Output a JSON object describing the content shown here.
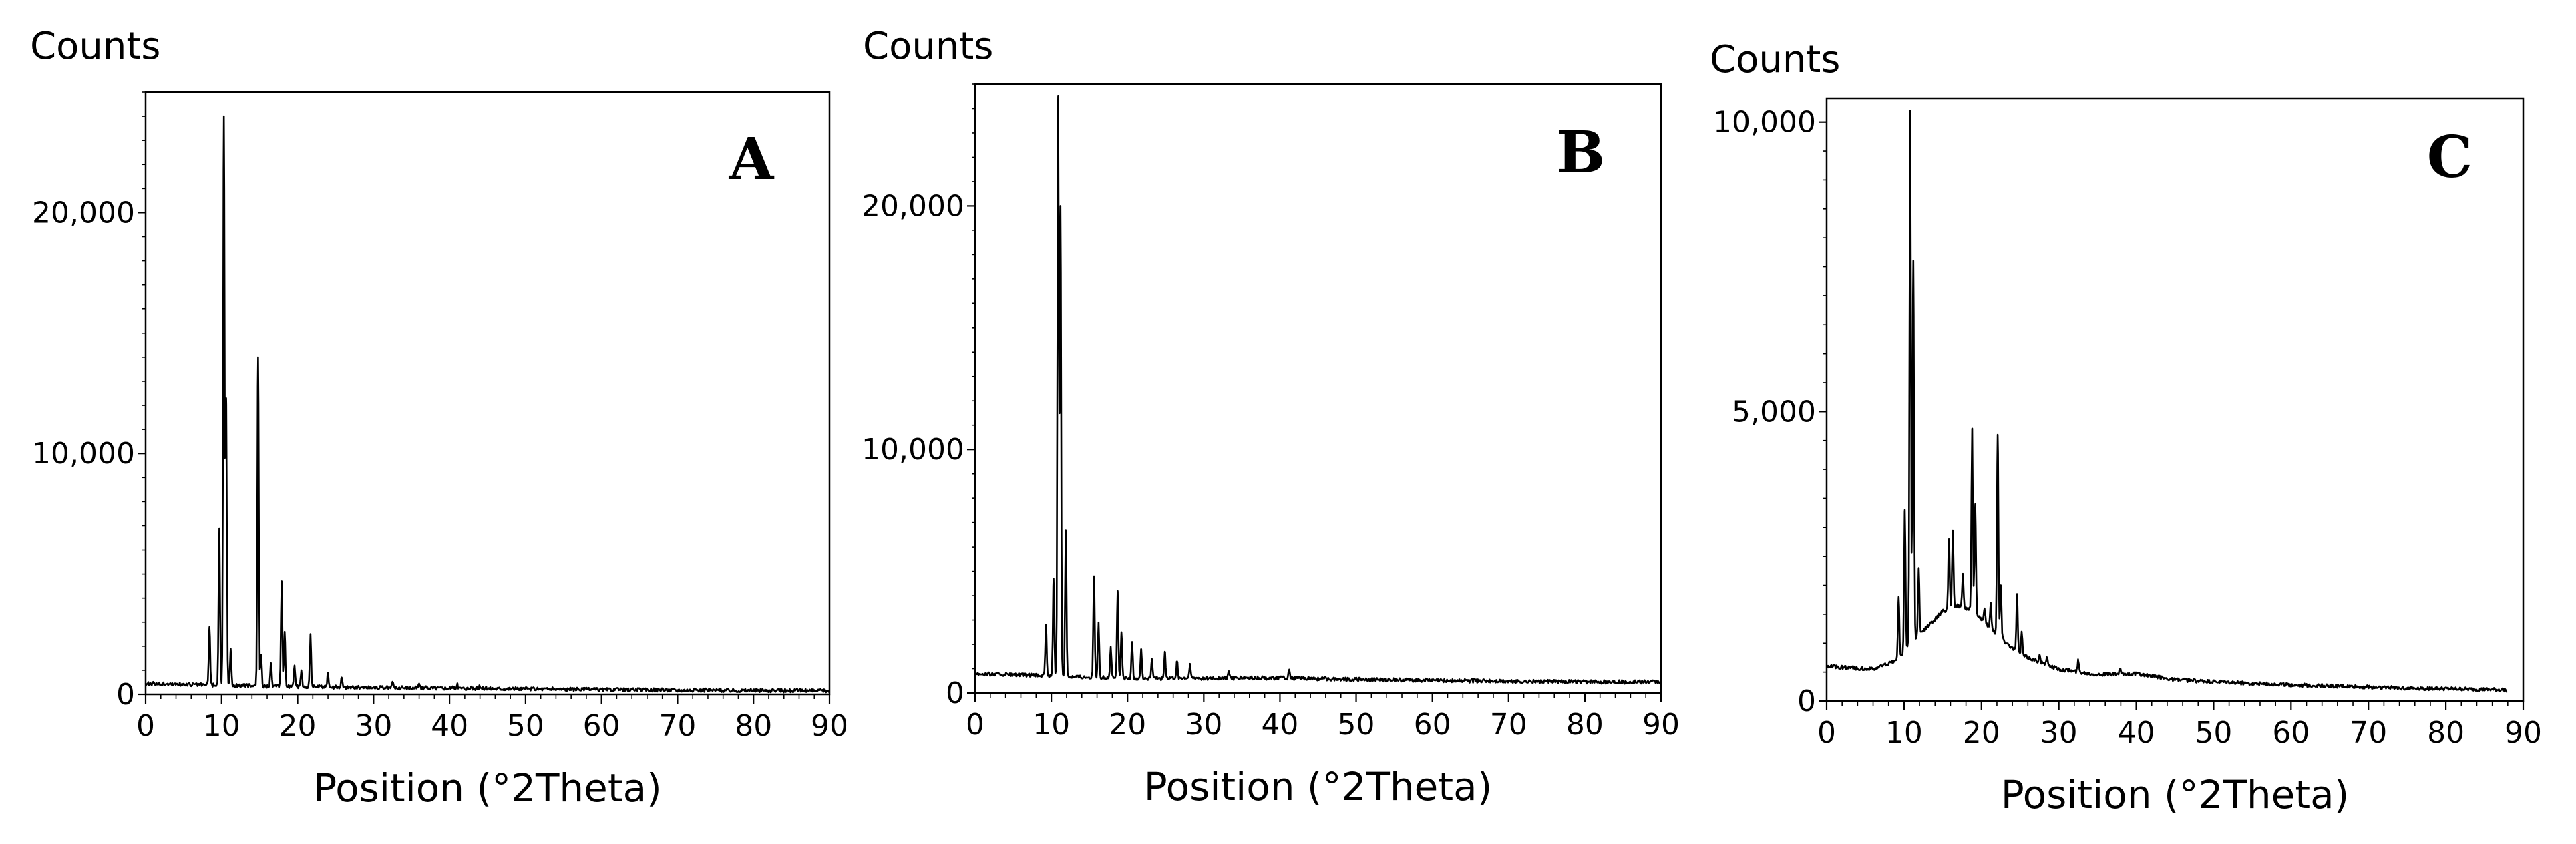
{
  "chart_data": [
    {
      "type": "line",
      "panel_label": "A",
      "xlabel": "Position (°2Theta)",
      "ylabel": "Counts",
      "xlim": [
        0,
        90
      ],
      "ylim": [
        0,
        25000
      ],
      "xticks": [
        0,
        10,
        20,
        30,
        40,
        50,
        60,
        70,
        80,
        90
      ],
      "yticks": [
        0,
        10000,
        20000
      ],
      "ytick_labels": [
        "0",
        "10,000",
        "20,000"
      ],
      "baseline": [
        [
          0,
          450
        ],
        [
          10,
          380
        ],
        [
          20,
          320
        ],
        [
          30,
          280
        ],
        [
          40,
          260
        ],
        [
          50,
          230
        ],
        [
          60,
          200
        ],
        [
          70,
          180
        ],
        [
          80,
          160
        ],
        [
          90,
          150
        ]
      ],
      "peaks": [
        [
          8.4,
          2800
        ],
        [
          9.7,
          6900
        ],
        [
          10.3,
          24000
        ],
        [
          10.6,
          12300
        ],
        [
          11.2,
          1900
        ],
        [
          14.8,
          14000
        ],
        [
          15.2,
          1600
        ],
        [
          16.5,
          1300
        ],
        [
          17.9,
          4700
        ],
        [
          18.3,
          2600
        ],
        [
          19.6,
          1200
        ],
        [
          20.5,
          1000
        ],
        [
          21.7,
          2500
        ],
        [
          24.0,
          900
        ],
        [
          25.8,
          700
        ],
        [
          32.5,
          500
        ],
        [
          36,
          450
        ],
        [
          41,
          400
        ],
        [
          44,
          330
        ]
      ]
    },
    {
      "type": "line",
      "panel_label": "B",
      "xlabel": "Position (°2Theta)",
      "ylabel": "Counts",
      "xlim": [
        0,
        90
      ],
      "ylim": [
        0,
        25000
      ],
      "xticks": [
        0,
        10,
        20,
        30,
        40,
        50,
        60,
        70,
        80,
        90
      ],
      "yticks": [
        0,
        10000,
        20000
      ],
      "ytick_labels": [
        "0",
        "10,000",
        "20,000"
      ],
      "baseline": [
        [
          0,
          800
        ],
        [
          10,
          700
        ],
        [
          20,
          600
        ],
        [
          30,
          600
        ],
        [
          40,
          620
        ],
        [
          50,
          560
        ],
        [
          60,
          520
        ],
        [
          70,
          480
        ],
        [
          80,
          460
        ],
        [
          90,
          450
        ]
      ],
      "peaks": [
        [
          9.3,
          2800
        ],
        [
          10.3,
          4700
        ],
        [
          10.9,
          24500
        ],
        [
          11.2,
          20000
        ],
        [
          11.9,
          6700
        ],
        [
          15.6,
          4800
        ],
        [
          16.2,
          2900
        ],
        [
          17.8,
          1900
        ],
        [
          18.7,
          4200
        ],
        [
          19.2,
          2500
        ],
        [
          20.6,
          2100
        ],
        [
          21.8,
          1800
        ],
        [
          23.2,
          1400
        ],
        [
          24.9,
          1700
        ],
        [
          26.5,
          1300
        ],
        [
          28.2,
          1200
        ],
        [
          33.3,
          900
        ],
        [
          41.2,
          900
        ]
      ]
    },
    {
      "type": "line",
      "panel_label": "C",
      "xlabel": "Position (°2Theta)",
      "ylabel": "Counts",
      "xlim": [
        0,
        90
      ],
      "ylim": [
        0,
        10400
      ],
      "xticks": [
        0,
        10,
        20,
        30,
        40,
        50,
        60,
        70,
        80,
        90
      ],
      "yticks": [
        0,
        5000,
        10000
      ],
      "ytick_labels": [
        "0",
        "5,000",
        "10,000"
      ],
      "baseline": [
        [
          0,
          600
        ],
        [
          6,
          550
        ],
        [
          9,
          700
        ],
        [
          12,
          1150
        ],
        [
          15,
          1550
        ],
        [
          17,
          1650
        ],
        [
          19,
          1550
        ],
        [
          22,
          1150
        ],
        [
          25,
          800
        ],
        [
          30,
          550
        ],
        [
          35,
          460
        ],
        [
          40,
          470
        ],
        [
          45,
          370
        ],
        [
          50,
          330
        ],
        [
          60,
          280
        ],
        [
          70,
          240
        ],
        [
          80,
          210
        ],
        [
          88,
          190
        ]
      ],
      "peaks": [
        [
          9.3,
          1800
        ],
        [
          10.1,
          3300
        ],
        [
          10.8,
          10200
        ],
        [
          11.2,
          7600
        ],
        [
          11.9,
          2300
        ],
        [
          15.8,
          2800
        ],
        [
          16.3,
          2950
        ],
        [
          17.6,
          2200
        ],
        [
          18.8,
          4700
        ],
        [
          19.2,
          3400
        ],
        [
          20.4,
          1600
        ],
        [
          21.2,
          1700
        ],
        [
          22.1,
          4600
        ],
        [
          22.5,
          2000
        ],
        [
          24.6,
          1850
        ],
        [
          25.2,
          1200
        ],
        [
          27.5,
          800
        ],
        [
          28.5,
          750
        ],
        [
          32.5,
          700
        ],
        [
          37.9,
          550
        ]
      ]
    }
  ]
}
